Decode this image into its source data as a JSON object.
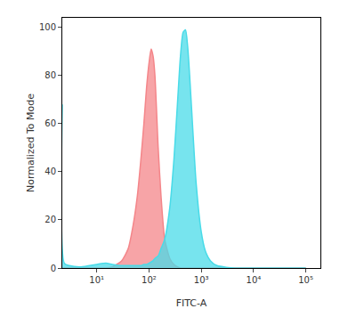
{
  "chart_data": {
    "type": "area",
    "x_label": "FITC-A",
    "y_label": "Normalized To Mode",
    "log": "x",
    "grid": false,
    "x": [
      2.2,
      2.4,
      3,
      5,
      10,
      15,
      20,
      30,
      40,
      50,
      60,
      70,
      80,
      90,
      100,
      110,
      120,
      130,
      150,
      170,
      200,
      250,
      300,
      350,
      400,
      450,
      500,
      550,
      600,
      700,
      800,
      1000,
      1200,
      1500,
      2000,
      3000,
      5000,
      10000,
      100000
    ],
    "series": [
      {
        "color": "#f4868a",
        "values": [
          0,
          0,
          0,
          0,
          0,
          0,
          0.5,
          3,
          8,
          18,
          30,
          45,
          60,
          75,
          85,
          91,
          88,
          80,
          50,
          30,
          12,
          4,
          1.5,
          0.5,
          0,
          0,
          0,
          0,
          0,
          0,
          0,
          0,
          0,
          0,
          0,
          0,
          0,
          0,
          0
        ]
      },
      {
        "color": "#49dbe8",
        "values": [
          68,
          2,
          1,
          0.5,
          1.5,
          2,
          1.5,
          1,
          1,
          1,
          1,
          1,
          1.5,
          1.5,
          2,
          2.5,
          3,
          4,
          5,
          8,
          12,
          25,
          45,
          68,
          88,
          98,
          99,
          92,
          80,
          55,
          35,
          15,
          7,
          3,
          1,
          0.3,
          0,
          0,
          0
        ]
      }
    ],
    "xlim": [
      2.2,
      190000
    ],
    "ylim": [
      0,
      104
    ],
    "xticks": [
      {
        "value": 10,
        "label": "10¹"
      },
      {
        "value": 100,
        "label": "10²"
      },
      {
        "value": 1000,
        "label": "10³"
      },
      {
        "value": 10000,
        "label": "10⁴"
      },
      {
        "value": 100000,
        "label": "10⁵"
      }
    ],
    "yticks": [
      0,
      20,
      40,
      60,
      80,
      100
    ]
  }
}
